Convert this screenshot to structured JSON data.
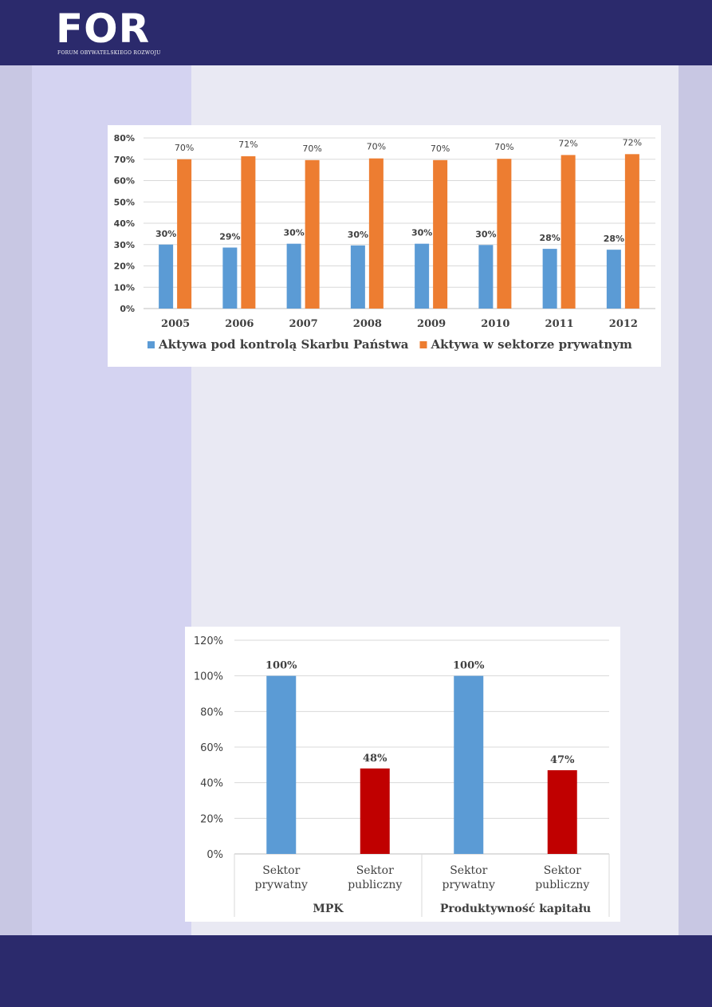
{
  "header": {
    "logo_text": "FOR",
    "logo_subtitle": "FORUM OBYWATELSKIEGO ROZWOJU"
  },
  "colors": {
    "band": "#2b2a6c",
    "blue": "#5b9bd5",
    "orange": "#ed7d31",
    "red": "#c00000"
  },
  "chart_data": [
    {
      "type": "bar",
      "title": "",
      "xlabel": "",
      "ylabel": "",
      "ylim": [
        0,
        80
      ],
      "yticks": [
        "0%",
        "10%",
        "20%",
        "30%",
        "40%",
        "50%",
        "60%",
        "70%",
        "80%"
      ],
      "categories": [
        "2005",
        "2006",
        "2007",
        "2008",
        "2009",
        "2010",
        "2011",
        "2012"
      ],
      "grid": true,
      "legend_position": "bottom",
      "series": [
        {
          "name": "Aktywa pod kontrolą Skarbu Państwa",
          "color": "#5b9bd5",
          "values": [
            30,
            28.6,
            30.4,
            29.6,
            30.4,
            29.8,
            28,
            27.6
          ],
          "labels": [
            "30%",
            "29%",
            "30%",
            "30%",
            "30%",
            "30%",
            "28%",
            "28%"
          ]
        },
        {
          "name": "Aktywa w sektorze prywatnym",
          "color": "#ed7d31",
          "values": [
            70,
            71.4,
            69.6,
            70.4,
            69.6,
            70.2,
            72,
            72.4
          ],
          "labels": [
            "70%",
            "71%",
            "70%",
            "70%",
            "70%",
            "70%",
            "72%",
            "72%"
          ]
        }
      ]
    },
    {
      "type": "bar",
      "title": "",
      "ylim": [
        0,
        120
      ],
      "yticks": [
        "0%",
        "20%",
        "40%",
        "60%",
        "80%",
        "100%",
        "120%"
      ],
      "grid": true,
      "groups": [
        {
          "name": "MPK",
          "categories": [
            {
              "label": [
                "Sektor",
                "prywatny"
              ],
              "value": 100,
              "value_label": "100%",
              "color": "#5b9bd5"
            },
            {
              "label": [
                "Sektor",
                "publiczny"
              ],
              "value": 48,
              "value_label": "48%",
              "color": "#c00000"
            }
          ]
        },
        {
          "name": "Produktywność kapitału",
          "categories": [
            {
              "label": [
                "Sektor",
                "prywatny"
              ],
              "value": 100,
              "value_label": "100%",
              "color": "#5b9bd5"
            },
            {
              "label": [
                "Sektor",
                "publiczny"
              ],
              "value": 47,
              "value_label": "47%",
              "color": "#c00000"
            }
          ]
        }
      ]
    }
  ]
}
